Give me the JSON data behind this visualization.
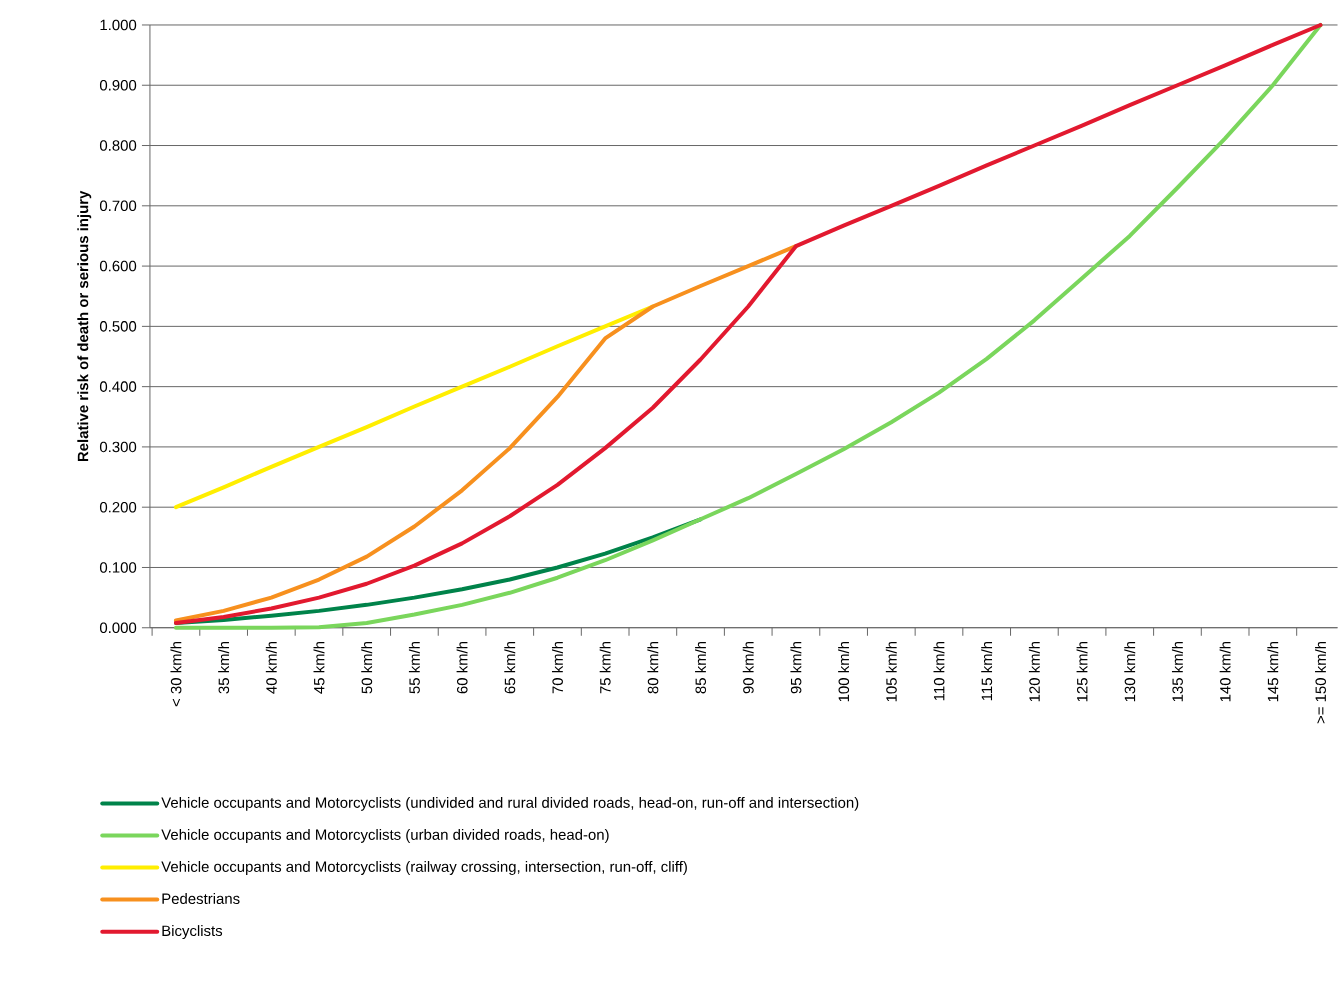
{
  "chart_data": {
    "type": "line",
    "ylabel": "Relative risk of death or serious injury",
    "categories": [
      "< 30 km/h",
      "35 km/h",
      "40 km/h",
      "45 km/h",
      "50 km/h",
      "55 km/h",
      "60 km/h",
      "65 km/h",
      "70 km/h",
      "75 km/h",
      "80 km/h",
      "85 km/h",
      "90 km/h",
      "95 km/h",
      "100 km/h",
      "105 km/h",
      "110 km/h",
      "115 km/h",
      "120 km/h",
      "125 km/h",
      "130 km/h",
      "135 km/h",
      "140 km/h",
      "145 km/h",
      ">= 150 km/h"
    ],
    "ylim": [
      0,
      1
    ],
    "yticks": [
      {
        "value": 0,
        "label": "0.000"
      },
      {
        "value": 0.1,
        "label": "0.100"
      },
      {
        "value": 0.2,
        "label": "0.200"
      },
      {
        "value": 0.3,
        "label": "0.300"
      },
      {
        "value": 0.4,
        "label": "0.400"
      },
      {
        "value": 0.5,
        "label": "0.500"
      },
      {
        "value": 0.6,
        "label": "0.600"
      },
      {
        "value": 0.7,
        "label": "0.700"
      },
      {
        "value": 0.8,
        "label": "0.800"
      },
      {
        "value": 0.9,
        "label": "0.900"
      },
      {
        "value": 1,
        "label": "1.000"
      }
    ],
    "grid": "y",
    "legend": "bottom",
    "marker": "none",
    "line_style": "solid",
    "series": [
      {
        "name": "Vehicle occupants and Motorcyclists (undivided and rural divided roads, head-on, run-off and intersection)",
        "color": "#00834a",
        "values": [
          0.008,
          0.013,
          0.02,
          0.028,
          0.038,
          0.05,
          0.064,
          0.08,
          0.1,
          0.123,
          0.15,
          0.18,
          null,
          null,
          null,
          null,
          null,
          null,
          null,
          null,
          null,
          null,
          null,
          null,
          null
        ]
      },
      {
        "name": "Vehicle occupants and Motorcyclists (urban divided roads, head-on)",
        "color": "#7ad65c",
        "values": [
          0.0,
          0.0,
          0.0,
          0.001,
          0.008,
          0.022,
          0.038,
          0.058,
          0.083,
          0.112,
          0.145,
          0.18,
          0.215,
          0.255,
          0.296,
          0.341,
          0.39,
          0.446,
          0.51,
          0.58,
          0.65,
          0.73,
          0.812,
          0.9,
          1.0
        ]
      },
      {
        "name": "Vehicle occupants and Motorcyclists (railway crossing, intersection, run-off, cliff)",
        "color": "#ffee00",
        "values": [
          0.2,
          0.233,
          0.267,
          0.3,
          0.333,
          0.367,
          0.4,
          0.433,
          0.467,
          0.5,
          0.533,
          null,
          null,
          null,
          null,
          null,
          null,
          null,
          null,
          null,
          null,
          null,
          null,
          null,
          null
        ]
      },
      {
        "name": "Pedestrians",
        "color": "#f7901e",
        "values": [
          0.012,
          0.028,
          0.05,
          0.08,
          0.118,
          0.168,
          0.228,
          0.298,
          0.383,
          0.48,
          0.533,
          0.567,
          0.6,
          0.633,
          null,
          null,
          null,
          null,
          null,
          null,
          null,
          null,
          null,
          null,
          null
        ]
      },
      {
        "name": "Bicyclists",
        "color": "#e2192f",
        "values": [
          0.008,
          0.018,
          0.032,
          0.05,
          0.073,
          0.103,
          0.14,
          0.185,
          0.237,
          0.298,
          0.365,
          0.445,
          0.533,
          0.633,
          0.667,
          0.7,
          0.733,
          0.767,
          0.8,
          0.833,
          0.867,
          0.9,
          0.933,
          0.967,
          1.0
        ]
      }
    ]
  }
}
